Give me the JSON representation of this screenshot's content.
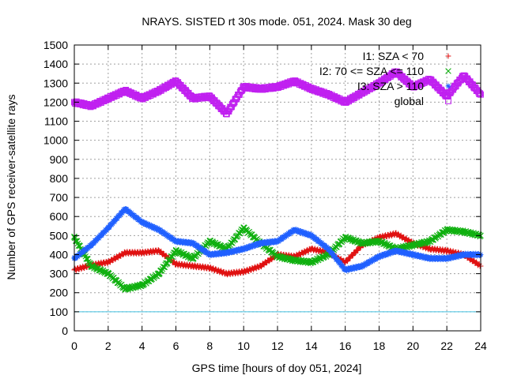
{
  "chart_data": {
    "type": "scatter",
    "title": "NRAYS. SISTED rt 30s mode. 051, 2024. Mask 30 deg",
    "xlabel": "GPS time [hours of doy 051, 2024]",
    "ylabel": "Number of GPS receiver-satellite rays",
    "xlim": [
      0,
      24
    ],
    "ylim": [
      0,
      1500
    ],
    "x_ticks": [
      0,
      2,
      4,
      6,
      8,
      10,
      12,
      14,
      16,
      18,
      20,
      22,
      24
    ],
    "y_ticks": [
      0,
      100,
      200,
      300,
      400,
      500,
      600,
      700,
      800,
      900,
      1000,
      1100,
      1200,
      1300,
      1400,
      1500
    ],
    "grid": true,
    "legend_position": "top-right",
    "reference_line": {
      "y": 100,
      "color": "#40c0e0"
    },
    "series": [
      {
        "name": "I1: SZA < 70",
        "marker": "+",
        "color": "#e01010",
        "x": [
          0,
          1,
          2,
          3,
          4,
          5,
          6,
          7,
          8,
          9,
          10,
          11,
          12,
          13,
          14,
          15,
          16,
          17,
          18,
          19,
          20,
          21,
          22,
          23,
          24
        ],
        "y": [
          320,
          345,
          360,
          410,
          410,
          420,
          350,
          340,
          330,
          300,
          310,
          340,
          400,
          390,
          430,
          410,
          360,
          450,
          490,
          510,
          460,
          430,
          420,
          400,
          340
        ]
      },
      {
        "name": "I2: 70 <= SZA <= 110",
        "marker": "x",
        "color": "#10b010",
        "x": [
          0,
          1,
          2,
          3,
          4,
          5,
          6,
          7,
          8,
          9,
          10,
          11,
          12,
          13,
          14,
          15,
          16,
          17,
          18,
          19,
          20,
          21,
          22,
          23,
          24
        ],
        "y": [
          490,
          340,
          300,
          220,
          240,
          300,
          420,
          380,
          470,
          430,
          540,
          460,
          390,
          370,
          360,
          400,
          490,
          460,
          470,
          430,
          450,
          470,
          530,
          520,
          500
        ]
      },
      {
        "name": "I3: SZA > 110",
        "marker": "*",
        "color": "#2060ff",
        "x": [
          0,
          1,
          2,
          3,
          4,
          5,
          6,
          7,
          8,
          9,
          10,
          11,
          12,
          13,
          14,
          15,
          16,
          17,
          18,
          19,
          20,
          21,
          22,
          23,
          24
        ],
        "y": [
          380,
          450,
          540,
          640,
          570,
          530,
          470,
          460,
          400,
          410,
          430,
          460,
          470,
          530,
          500,
          430,
          320,
          340,
          390,
          420,
          400,
          380,
          380,
          400,
          400
        ]
      },
      {
        "name": "global",
        "marker": "square",
        "color": "#c020f0",
        "x": [
          0,
          1,
          2,
          3,
          4,
          5,
          6,
          7,
          8,
          9,
          10,
          11,
          12,
          13,
          14,
          15,
          16,
          17,
          18,
          19,
          20,
          21,
          22,
          23,
          24
        ],
        "y": [
          1200,
          1180,
          1220,
          1260,
          1220,
          1260,
          1310,
          1220,
          1230,
          1140,
          1280,
          1270,
          1280,
          1310,
          1270,
          1240,
          1200,
          1250,
          1300,
          1360,
          1280,
          1320,
          1230,
          1340,
          1240
        ]
      }
    ]
  }
}
